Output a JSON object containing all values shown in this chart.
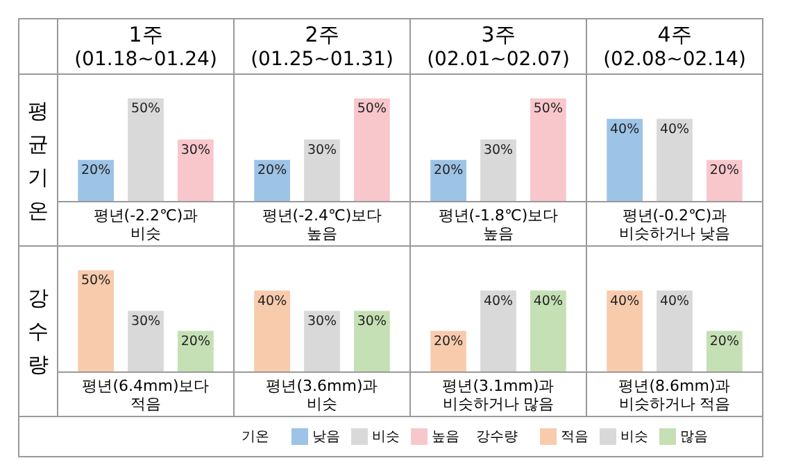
{
  "chart_data": [
    {
      "type": "bar",
      "title": "1주",
      "subtitle": "(01.18~01.24)",
      "ylabel": "평균기온",
      "categories": [
        null
      ],
      "tick_labels": false,
      "legend": "bottom",
      "legend_title": "기온",
      "annotations": [
        "평년(-2.2℃)과\n비슷"
      ],
      "series": [
        {
          "name": "낮음",
          "color": "#9dc3e6",
          "values": [
            20
          ],
          "value_labels": [
            "20%"
          ]
        },
        {
          "name": "비슷",
          "color": "#d9d9d9",
          "values": [
            50
          ],
          "value_labels": [
            "50%"
          ]
        },
        {
          "name": "높음",
          "color": "#f8c7cc",
          "values": [
            30
          ],
          "value_labels": [
            "30%"
          ]
        }
      ]
    },
    {
      "type": "bar",
      "title": "2주",
      "subtitle": "(01.25~01.31)",
      "categories": [
        null
      ],
      "tick_labels": false,
      "annotations": [
        "평년(-2.4℃)보다\n높음"
      ],
      "series": [
        {
          "color": "#9dc3e6",
          "values": [
            20
          ],
          "value_labels": [
            "20%"
          ]
        },
        {
          "color": "#d9d9d9",
          "values": [
            30
          ],
          "value_labels": [
            "30%"
          ]
        },
        {
          "color": "#f8c7cc",
          "values": [
            50
          ],
          "value_labels": [
            "50%"
          ]
        }
      ]
    },
    {
      "type": "bar",
      "title": "3주",
      "subtitle": "(02.01~02.07)",
      "categories": [
        null
      ],
      "tick_labels": false,
      "annotations": [
        "평년(-1.8℃)보다\n높음"
      ],
      "series": [
        {
          "color": "#9dc3e6",
          "values": [
            20
          ],
          "value_labels": [
            "20%"
          ]
        },
        {
          "color": "#d9d9d9",
          "values": [
            30
          ],
          "value_labels": [
            "30%"
          ]
        },
        {
          "color": "#f8c7cc",
          "values": [
            50
          ],
          "value_labels": [
            "50%"
          ]
        }
      ]
    },
    {
      "type": "bar",
      "title": "4주",
      "subtitle": "(02.08~02.14)",
      "categories": [
        null
      ],
      "tick_labels": false,
      "annotations": [
        "평년(-0.2℃)과\n비슷하거나 낮음"
      ],
      "series": [
        {
          "color": "#9dc3e6",
          "values": [
            40
          ],
          "value_labels": [
            "40%"
          ]
        },
        {
          "color": "#d9d9d9",
          "values": [
            40
          ],
          "value_labels": [
            "40%"
          ]
        },
        {
          "color": "#f8c7cc",
          "values": [
            20
          ],
          "value_labels": [
            "20%"
          ]
        }
      ]
    },
    {
      "type": "bar",
      "ylabel": "강수량",
      "categories": [
        null
      ],
      "tick_labels": false,
      "legend": "bottom",
      "legend_title": "강수량",
      "annotations": [
        "평년(6.4mm)보다\n적음"
      ],
      "series": [
        {
          "name": "적음",
          "color": "#f8cbad",
          "values": [
            50
          ],
          "value_labels": [
            "50%"
          ]
        },
        {
          "name": "비슷",
          "color": "#d9d9d9",
          "values": [
            30
          ],
          "value_labels": [
            "30%"
          ]
        },
        {
          "name": "많음",
          "color": "#c5e0b4",
          "values": [
            20
          ],
          "value_labels": [
            "20%"
          ]
        }
      ]
    },
    {
      "type": "bar",
      "categories": [
        null
      ],
      "tick_labels": false,
      "annotations": [
        "평년(3.6mm)과\n비슷"
      ],
      "series": [
        {
          "color": "#f8cbad",
          "values": [
            40
          ],
          "value_labels": [
            "40%"
          ]
        },
        {
          "color": "#d9d9d9",
          "values": [
            30
          ],
          "value_labels": [
            "30%"
          ]
        },
        {
          "color": "#c5e0b4",
          "values": [
            30
          ],
          "value_labels": [
            "30%"
          ]
        }
      ]
    },
    {
      "type": "bar",
      "categories": [
        null
      ],
      "tick_labels": false,
      "annotations": [
        "평년(3.1mm)과\n비슷하거나 많음"
      ],
      "series": [
        {
          "color": "#f8cbad",
          "values": [
            20
          ],
          "value_labels": [
            "20%"
          ]
        },
        {
          "color": "#d9d9d9",
          "values": [
            40
          ],
          "value_labels": [
            "40%"
          ]
        },
        {
          "color": "#c5e0b4",
          "values": [
            40
          ],
          "value_labels": [
            "40%"
          ]
        }
      ]
    },
    {
      "type": "bar",
      "categories": [
        null
      ],
      "tick_labels": false,
      "annotations": [
        "평년(8.6mm)과\n비슷하거나 적음"
      ],
      "series": [
        {
          "color": "#f8cbad",
          "values": [
            40
          ],
          "value_labels": [
            "40%"
          ]
        },
        {
          "color": "#d9d9d9",
          "values": [
            40
          ],
          "value_labels": [
            "40%"
          ]
        },
        {
          "color": "#c5e0b4",
          "values": [
            20
          ],
          "value_labels": [
            "20%"
          ]
        }
      ]
    }
  ]
}
